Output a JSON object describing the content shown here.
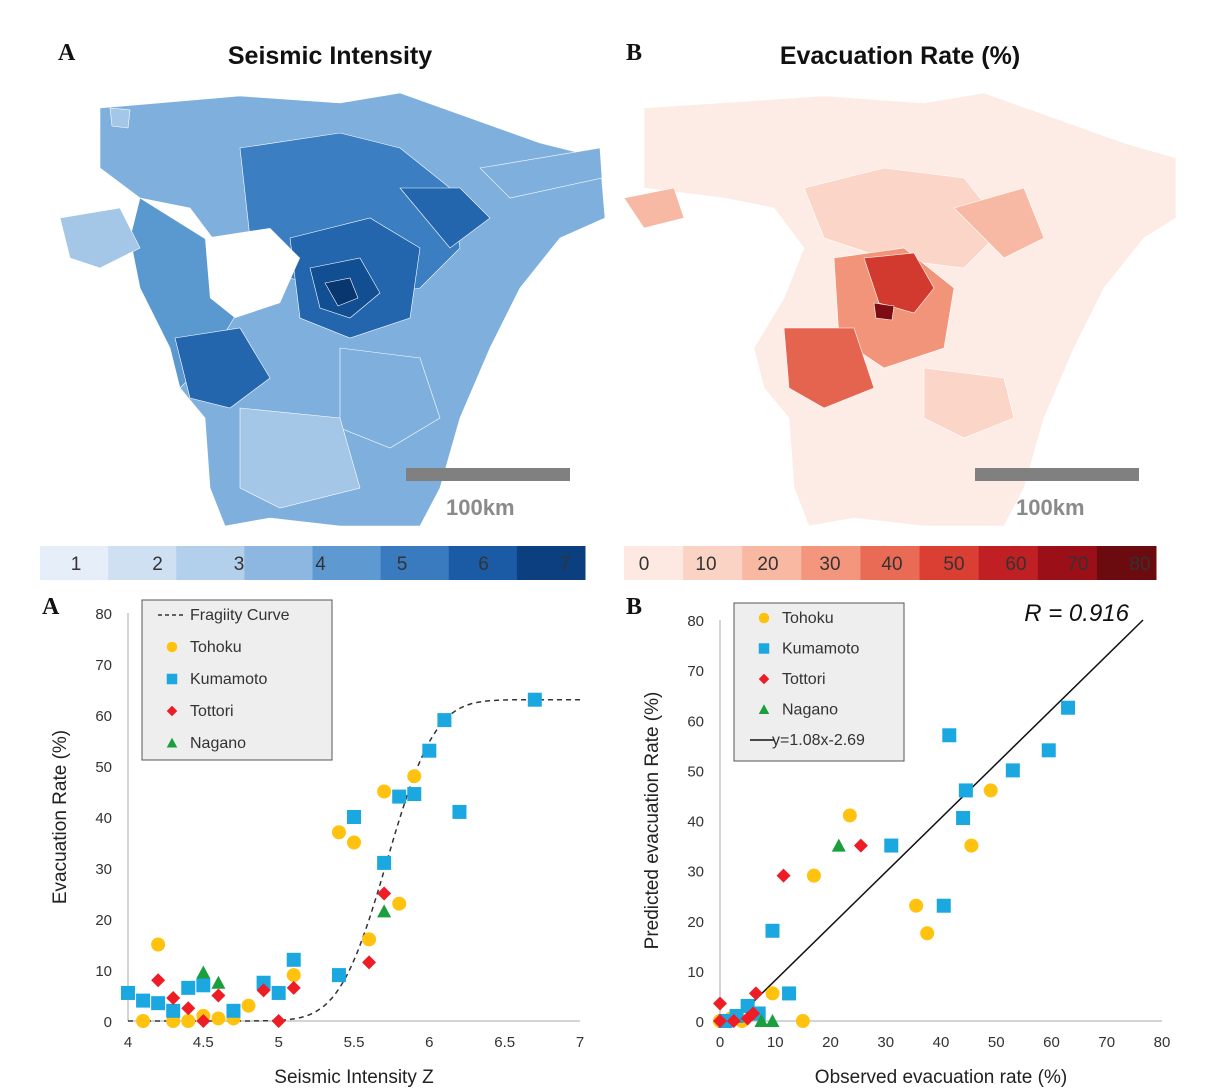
{
  "panels": {
    "map_a": {
      "letter": "A",
      "title": "Seismic Intensity",
      "scale_label": "100km"
    },
    "map_b": {
      "letter": "B",
      "title": "Evacuation Rate (%)",
      "scale_label": "100km"
    },
    "plot_a": {
      "letter": "A"
    },
    "plot_b": {
      "letter": "B"
    }
  },
  "colorbars": {
    "seismic": {
      "labels": [
        "1",
        "2",
        "3",
        "4",
        "5",
        "6",
        "7"
      ],
      "colors": [
        "#e6eff9",
        "#cfe0f3",
        "#b2cfeb",
        "#8db7e0",
        "#5e9ad1",
        "#3a7bbf",
        "#1b5ba6",
        "#0b3f80"
      ]
    },
    "evacuation": {
      "labels": [
        "0",
        "10",
        "20",
        "30",
        "40",
        "50",
        "60",
        "70",
        "80"
      ],
      "colors": [
        "#fde9e1",
        "#fbd3c4",
        "#f8b8a2",
        "#f3967d",
        "#ea6b55",
        "#db3e33",
        "#c01f23",
        "#9b0f18",
        "#6b0a0f"
      ]
    }
  },
  "map_colors": {
    "seismic": [
      "#c6dbf0",
      "#a4c6e7",
      "#7fb0dd",
      "#5a98d0",
      "#3b7ec2",
      "#2466ad",
      "#124e92",
      "#0a3670"
    ],
    "evacuation": [
      "#fdece5",
      "#fbd6c8",
      "#f7b9a3",
      "#f19479",
      "#e46450",
      "#d23a30",
      "#b51d22",
      "#7e0c13"
    ]
  },
  "chart_data": [
    {
      "type": "scatter",
      "xlabel": "Seismic Intensity Z",
      "ylabel": "Evacuation Rate (%)",
      "xlim": [
        4,
        7
      ],
      "ylim": [
        0,
        80
      ],
      "xticks": [
        "4",
        "4.5",
        "5",
        "5.5",
        "6",
        "6.5",
        "7"
      ],
      "yticks": [
        "0",
        "10",
        "20",
        "30",
        "40",
        "50",
        "60",
        "70",
        "80"
      ],
      "legend_position": "top-left",
      "curve": {
        "name": "Fragiity Curve",
        "style": "dashed",
        "color": "#333333",
        "mu": 5.72,
        "sigma": 0.25,
        "max": 63
      },
      "series": [
        {
          "name": "Tohoku",
          "marker": "circle",
          "color": "#ffc20e",
          "points": [
            [
              4.1,
              0
            ],
            [
              4.2,
              15
            ],
            [
              4.3,
              0
            ],
            [
              4.4,
              0
            ],
            [
              4.5,
              1
            ],
            [
              4.6,
              0.5
            ],
            [
              4.7,
              0.5
            ],
            [
              4.8,
              3
            ],
            [
              5.1,
              9
            ],
            [
              5.4,
              37
            ],
            [
              5.5,
              35
            ],
            [
              5.6,
              16
            ],
            [
              5.7,
              45
            ],
            [
              5.8,
              23
            ],
            [
              5.9,
              48
            ]
          ]
        },
        {
          "name": "Kumamoto",
          "marker": "square",
          "color": "#1ba8e0",
          "points": [
            [
              4.0,
              5.5
            ],
            [
              4.1,
              4
            ],
            [
              4.2,
              3.5
            ],
            [
              4.3,
              2
            ],
            [
              4.4,
              6.5
            ],
            [
              4.5,
              7
            ],
            [
              4.7,
              2
            ],
            [
              4.9,
              7.5
            ],
            [
              5.0,
              5.5
            ],
            [
              5.1,
              12
            ],
            [
              5.4,
              9
            ],
            [
              5.5,
              40
            ],
            [
              5.7,
              31
            ],
            [
              5.8,
              44
            ],
            [
              5.9,
              44.5
            ],
            [
              6.0,
              53
            ],
            [
              6.1,
              59
            ],
            [
              6.2,
              41
            ],
            [
              6.7,
              63
            ]
          ]
        },
        {
          "name": "Tottori",
          "marker": "diamond",
          "color": "#ee1c25",
          "points": [
            [
              4.2,
              8
            ],
            [
              4.3,
              4.5
            ],
            [
              4.4,
              2.5
            ],
            [
              4.5,
              0
            ],
            [
              4.6,
              5
            ],
            [
              4.9,
              6
            ],
            [
              5.0,
              0
            ],
            [
              5.1,
              6.5
            ],
            [
              5.6,
              11.5
            ],
            [
              5.7,
              25
            ]
          ]
        },
        {
          "name": "Nagano",
          "marker": "triangle",
          "color": "#1a9e3e",
          "points": [
            [
              4.5,
              9.5
            ],
            [
              4.6,
              7.5
            ],
            [
              5.7,
              21.5
            ]
          ]
        }
      ]
    },
    {
      "type": "scatter",
      "xlabel": "Observed evacuation rate (%)",
      "ylabel": "Predicted evacuation Rate (%)",
      "xlim": [
        0,
        80
      ],
      "ylim": [
        0,
        80
      ],
      "xticks": [
        "0",
        "10",
        "20",
        "30",
        "40",
        "50",
        "60",
        "70",
        "80"
      ],
      "yticks": [
        "0",
        "10",
        "20",
        "30",
        "40",
        "50",
        "60",
        "70",
        "80"
      ],
      "legend_position": "top-left",
      "annotation": "R = 0.916",
      "fit": {
        "name": "y=1.08x-2.69",
        "slope": 1.08,
        "intercept": -2.69,
        "color": "#111111"
      },
      "series": [
        {
          "name": "Tohoku",
          "marker": "circle",
          "color": "#ffc20e",
          "points": [
            [
              0,
              0
            ],
            [
              2,
              0.5
            ],
            [
              4,
              0
            ],
            [
              9.5,
              5.5
            ],
            [
              15,
              0
            ],
            [
              17,
              29
            ],
            [
              23.5,
              41
            ],
            [
              35.5,
              23
            ],
            [
              37.5,
              17.5
            ],
            [
              45.5,
              35
            ],
            [
              49,
              46
            ]
          ]
        },
        {
          "name": "Kumamoto",
          "marker": "square",
          "color": "#1ba8e0",
          "points": [
            [
              1,
              0
            ],
            [
              3,
              1
            ],
            [
              5,
              3
            ],
            [
              7,
              1.5
            ],
            [
              9.5,
              18
            ],
            [
              12.5,
              5.5
            ],
            [
              31,
              35
            ],
            [
              40.5,
              23
            ],
            [
              41.5,
              57
            ],
            [
              44,
              40.5
            ],
            [
              44.5,
              46
            ],
            [
              53,
              50
            ],
            [
              59.5,
              54
            ],
            [
              63,
              62.5
            ]
          ]
        },
        {
          "name": "Tottori",
          "marker": "diamond",
          "color": "#ee1c25",
          "points": [
            [
              0,
              3.5
            ],
            [
              0,
              0
            ],
            [
              2.5,
              0
            ],
            [
              5,
              0.5
            ],
            [
              6,
              1.5
            ],
            [
              6.5,
              5.5
            ],
            [
              11.5,
              29
            ],
            [
              25.5,
              35
            ]
          ]
        },
        {
          "name": "Nagano",
          "marker": "triangle",
          "color": "#1a9e3e",
          "points": [
            [
              7.5,
              0
            ],
            [
              9.5,
              0
            ],
            [
              21.5,
              35
            ]
          ]
        }
      ]
    }
  ]
}
